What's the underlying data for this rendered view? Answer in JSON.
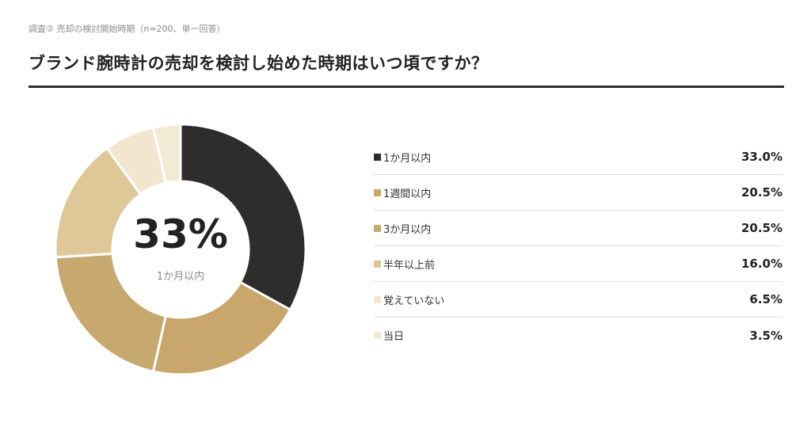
{
  "header": {
    "caption": "調査② 売却の検討開始時期（n=200、単一回答）",
    "title": "ブランド腕時計の売却を検討し始めた時期はいつ頃ですか？"
  },
  "center": {
    "big_value": "33%",
    "label": "1か月以内"
  },
  "chart_data": {
    "type": "pie",
    "categories": [
      "1か月以内",
      "1週間以内",
      "3か月以内",
      "半年以上前",
      "覚えていない",
      "当日"
    ],
    "values": [
      33.0,
      20.5,
      20.5,
      16.0,
      6.5,
      3.5
    ],
    "value_labels": [
      "33.0%",
      "20.5%",
      "20.5%",
      "16.0%",
      "6.5%",
      "3.5%"
    ],
    "colors": [
      "#2e2d2b",
      "#c9a66b",
      "#c7a86f",
      "#dfc898",
      "#f2e6cf",
      "#f3ead6"
    ],
    "unit": "%",
    "style": "donut",
    "legend": "right"
  }
}
